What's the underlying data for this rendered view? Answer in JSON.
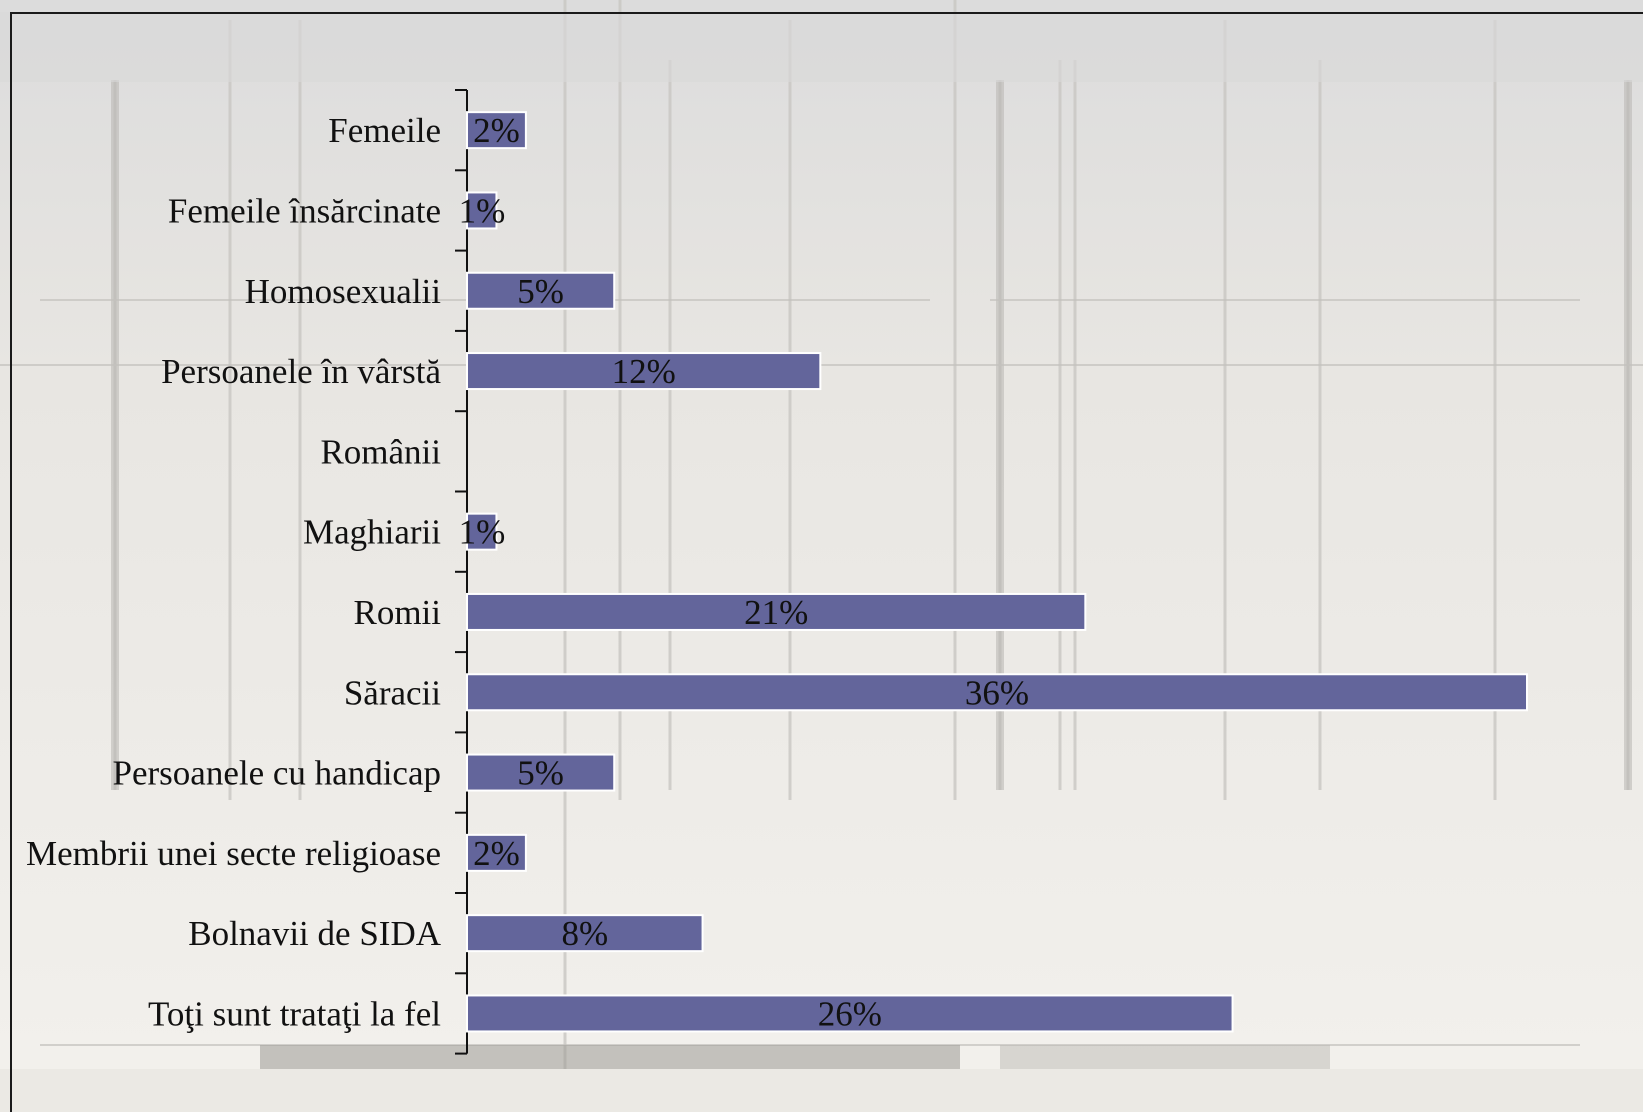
{
  "chart_data": {
    "type": "bar",
    "orientation": "horizontal",
    "categories": [
      "Femeile",
      "Femeile  însărcinate",
      "Homosexualii",
      "Persoanele în vârstă",
      "Românii",
      "Maghiarii",
      "Romii",
      "Săracii",
      "Persoanele cu handicap",
      "Membrii unei secte religioase",
      "Bolnavii de SIDA",
      "Toţi sunt trataţi la fel"
    ],
    "values": [
      2,
      1,
      5,
      12,
      0,
      1,
      21,
      36,
      5,
      2,
      8,
      26
    ],
    "value_labels": [
      "2%",
      "1%",
      "5%",
      "12%",
      "",
      "1%",
      "21%",
      "36%",
      "5%",
      "2%",
      "8%",
      "26%"
    ],
    "unit": "%",
    "xlim": [
      0,
      36
    ],
    "grid": false,
    "legend": "none",
    "colors": {
      "bar": "#63659b",
      "bar_border": "#ffffff",
      "text": "#111111"
    }
  }
}
